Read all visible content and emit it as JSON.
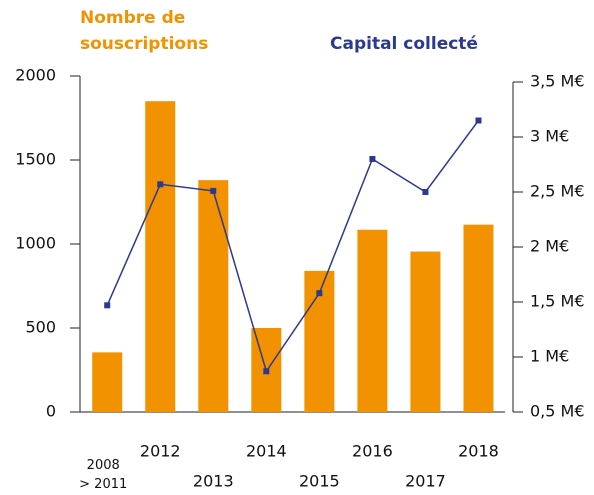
{
  "chart_data": {
    "type": "bar-line",
    "categories": [
      "2008\n> 2011",
      "2012",
      "2013",
      "2014",
      "2015",
      "2016",
      "2017",
      "2018"
    ],
    "series": [
      {
        "name": "Nombre de\nsouscriptions",
        "type": "bar",
        "color": "#f39200",
        "values": [
          355,
          1850,
          1380,
          500,
          840,
          1085,
          955,
          1115
        ]
      },
      {
        "name": "Capital collecté",
        "type": "line",
        "axis": "y2",
        "color": "#2b3990",
        "values": [
          1.47,
          2.57,
          2.51,
          0.87,
          1.58,
          2.8,
          2.5,
          3.15
        ]
      }
    ],
    "ylim": [
      0,
      2000
    ],
    "yticks": [
      0,
      500,
      1000,
      1500,
      2000
    ],
    "y2lim": [
      0.5,
      3.5
    ],
    "y2ticks": [
      {
        "value": 0.5,
        "label": "0,5 M€"
      },
      {
        "value": 1,
        "label": "1 M€"
      },
      {
        "value": 1.5,
        "label": "1,5 M€"
      },
      {
        "value": 2,
        "label": "2 M€"
      },
      {
        "value": 2.5,
        "label": "2,5 M€"
      },
      {
        "value": 3,
        "label": "3 M€"
      },
      {
        "value": 3.5,
        "label": "3,5 M€"
      }
    ]
  }
}
